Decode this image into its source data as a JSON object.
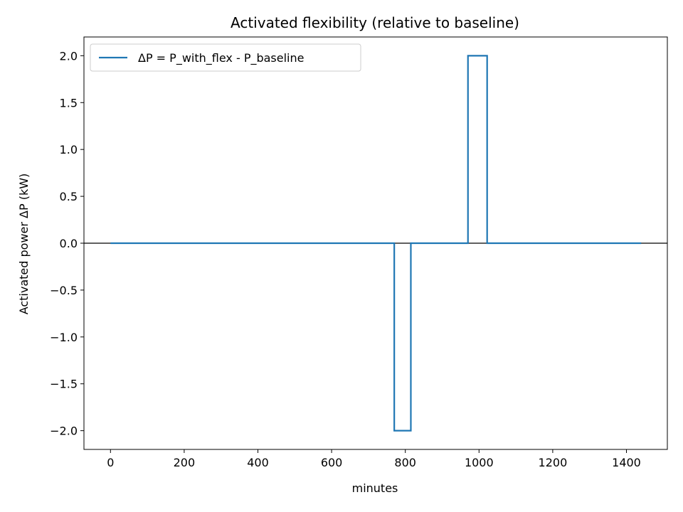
{
  "chart_data": {
    "type": "line",
    "title": "Activated flexibility (relative to baseline)",
    "xlabel": "minutes",
    "ylabel": "Activated power ΔP (kW)",
    "xlim": [
      -72,
      1511
    ],
    "ylim": [
      -2.2,
      2.2
    ],
    "xticks": [
      0,
      200,
      400,
      600,
      800,
      1000,
      1200,
      1400
    ],
    "xtick_labels": [
      "0",
      "200",
      "400",
      "600",
      "800",
      "1000",
      "1200",
      "1400"
    ],
    "yticks": [
      2.0,
      1.5,
      1.0,
      0.5,
      0.0,
      -0.5,
      -1.0,
      -1.5,
      -2.0
    ],
    "ytick_labels": [
      "2.0",
      "1.5",
      "1.0",
      "0.5",
      "0.0",
      "−0.5",
      "−1.0",
      "−1.5",
      "−2.0"
    ],
    "grid": false,
    "legend_position": "top-left",
    "reference_line": {
      "y": 0,
      "color": "#000000"
    },
    "series": [
      {
        "name": "ΔP = P_with_flex - P_baseline",
        "color": "#1f77b4",
        "step": "post",
        "x": [
          0,
          770,
          815,
          970,
          1022,
          1440
        ],
        "y": [
          0,
          -2,
          0,
          2,
          0,
          0
        ]
      }
    ]
  }
}
